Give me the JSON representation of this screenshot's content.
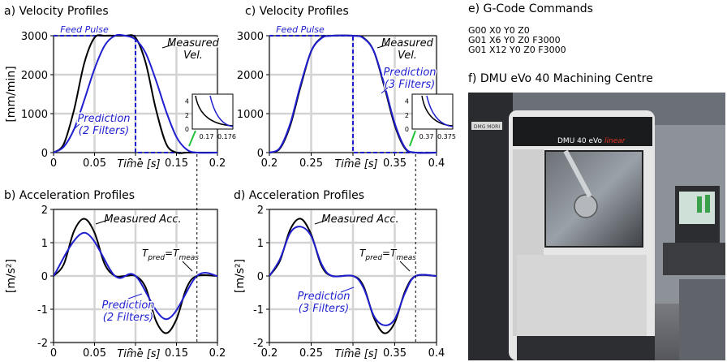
{
  "panel_e": {
    "title": "e) G-Code Commands",
    "lines": [
      "G00 X0 Y0 Z0",
      "G01 X6 Y0 Z0 F3000",
      "G01 X12 Y0 Z0 F3000"
    ]
  },
  "panel_f": {
    "title": "f) DMU eVo 40 Machining Centre",
    "machine_brand": "DMG MORI",
    "machine_model": "DMU 40 eVo",
    "machine_model_suffix": "linear"
  },
  "chart_data": [
    {
      "id": "a",
      "type": "line",
      "title": "a) Velocity Profiles",
      "xlabel": "Time [s]",
      "ylabel": "[mm/min]",
      "xlim": [
        0,
        0.2
      ],
      "ylim": [
        0,
        3000
      ],
      "xticks": [
        "0",
        "0.05",
        "0.1",
        "0.15",
        "0.2"
      ],
      "yticks": [
        "0",
        "1000",
        "2000",
        "3000"
      ],
      "grid": true,
      "series": [
        {
          "name": "Feed Pulse",
          "color": "#1f1fd0",
          "style": "dashed",
          "x": [
            0,
            0.1,
            0.1,
            0.2
          ],
          "y": [
            3000,
            3000,
            0,
            0
          ]
        },
        {
          "name": "Measured Vel.",
          "color": "#000000",
          "x": [
            0,
            0.0125,
            0.025,
            0.0375,
            0.05,
            0.0625,
            0.075,
            0.0875,
            0.1,
            0.1125,
            0.125,
            0.1375,
            0.15,
            0.1625,
            0.175,
            0.2
          ],
          "y": [
            0,
            220,
            1100,
            2300,
            2950,
            3000,
            3000,
            3000,
            2950,
            2300,
            1100,
            220,
            0,
            0,
            0,
            0
          ]
        },
        {
          "name": "Prediction (2 Filters)",
          "color": "#1f1fd0",
          "x": [
            0,
            0.0125,
            0.025,
            0.0375,
            0.05,
            0.0625,
            0.075,
            0.0875,
            0.1,
            0.1125,
            0.125,
            0.1375,
            0.15,
            0.1625,
            0.175,
            0.2
          ],
          "y": [
            0,
            150,
            600,
            1350,
            2150,
            2750,
            3000,
            3000,
            2900,
            2550,
            1850,
            1050,
            400,
            80,
            0,
            0
          ]
        }
      ],
      "annotations": [
        "Feed Pulse",
        "Measured Vel.",
        "Prediction (2 Filters)"
      ],
      "inset": {
        "xticks": [
          "0.17",
          "0.176"
        ],
        "yticks": [
          "0",
          "2",
          "4"
        ]
      }
    },
    {
      "id": "b",
      "type": "line",
      "title": "b) Acceleration Profiles",
      "xlabel": "Time [s]",
      "ylabel": "[m/s²]",
      "xlim": [
        0,
        0.2
      ],
      "ylim": [
        -2,
        2
      ],
      "xticks": [
        "0",
        "0.05",
        "0.1",
        "0.15",
        "0.2"
      ],
      "yticks": [
        "-2",
        "-1",
        "0",
        "1",
        "2"
      ],
      "grid": true,
      "series": [
        {
          "name": "Measured Acc.",
          "color": "#000000",
          "x": [
            0,
            0.0125,
            0.025,
            0.0375,
            0.05,
            0.0625,
            0.075,
            0.0875,
            0.1,
            0.1125,
            0.125,
            0.1375,
            0.15,
            0.1625,
            0.175,
            0.2
          ],
          "y": [
            0,
            0.35,
            1.35,
            1.72,
            1.3,
            0.35,
            0,
            0,
            0,
            -0.35,
            -1.35,
            -1.72,
            -1.3,
            -0.35,
            0,
            0
          ]
        },
        {
          "name": "Prediction (2 Filters)",
          "color": "#1f1fd0",
          "x": [
            0,
            0.0375,
            0.075,
            0.1,
            0.1375,
            0.175,
            0.2
          ],
          "y": [
            0,
            1.3,
            0,
            0,
            -1.3,
            0,
            0
          ]
        }
      ],
      "annotations": [
        "Measured Acc.",
        "Prediction (2 Filters)",
        "Tpred=Tmeas"
      ],
      "marker_x": 0.175
    },
    {
      "id": "c",
      "type": "line",
      "title": "c) Velocity Profiles",
      "xlabel": "Time [s]",
      "ylabel": "",
      "xlim": [
        0.2,
        0.4
      ],
      "ylim": [
        0,
        3000
      ],
      "xticks": [
        "0.2",
        "0.25",
        "0.3",
        "0.35",
        "0.4"
      ],
      "yticks": [
        "0",
        "1000",
        "2000",
        "3000"
      ],
      "grid": true,
      "series": [
        {
          "name": "Feed Pulse",
          "color": "#1f1fd0",
          "style": "dashed",
          "x": [
            0.2,
            0.3,
            0.3,
            0.4
          ],
          "y": [
            3000,
            3000,
            0,
            0
          ]
        },
        {
          "name": "Measured Vel.",
          "color": "#000000",
          "x": [
            0.2,
            0.2125,
            0.225,
            0.2375,
            0.25,
            0.2625,
            0.275,
            0.3,
            0.3125,
            0.325,
            0.3375,
            0.35,
            0.3625,
            0.375,
            0.4
          ],
          "y": [
            0,
            100,
            700,
            1700,
            2600,
            2950,
            3000,
            3000,
            2950,
            2600,
            1700,
            700,
            100,
            0,
            0
          ]
        },
        {
          "name": "Prediction (3 Filters)",
          "color": "#1f1fd0",
          "x": [
            0.2,
            0.2125,
            0.225,
            0.2375,
            0.25,
            0.2625,
            0.275,
            0.3,
            0.3125,
            0.325,
            0.3375,
            0.35,
            0.3625,
            0.375,
            0.4
          ],
          "y": [
            0,
            120,
            750,
            1750,
            2600,
            2940,
            3000,
            3000,
            2940,
            2600,
            1750,
            750,
            120,
            0,
            0
          ]
        }
      ],
      "annotations": [
        "Feed Pulse",
        "Measured Vel.",
        "Prediction (3 Filters)"
      ],
      "inset": {
        "xticks": [
          "0.37",
          "0.375"
        ],
        "yticks": [
          "0",
          "2",
          "4"
        ]
      }
    },
    {
      "id": "d",
      "type": "line",
      "title": "d) Acceleration Profiles",
      "xlabel": "Time [s]",
      "ylabel": "[m/s²]",
      "xlim": [
        0.2,
        0.4
      ],
      "ylim": [
        -2,
        2
      ],
      "xticks": [
        "0.2",
        "0.25",
        "0.3",
        "0.35",
        "0.4"
      ],
      "yticks": [
        "-2",
        "-1",
        "0",
        "1",
        "2"
      ],
      "grid": true,
      "series": [
        {
          "name": "Measured Acc.",
          "color": "#000000",
          "x": [
            0.2,
            0.2125,
            0.225,
            0.2375,
            0.25,
            0.2625,
            0.275,
            0.3,
            0.3125,
            0.325,
            0.3375,
            0.35,
            0.3625,
            0.375,
            0.4
          ],
          "y": [
            0,
            0.45,
            1.4,
            1.72,
            1.25,
            0.3,
            0,
            0,
            -0.3,
            -1.25,
            -1.72,
            -1.4,
            -0.45,
            0,
            0
          ]
        },
        {
          "name": "Prediction (3 Filters)",
          "color": "#1f1fd0",
          "x": [
            0.2,
            0.2125,
            0.225,
            0.2375,
            0.25,
            0.2625,
            0.275,
            0.3,
            0.3125,
            0.325,
            0.3375,
            0.35,
            0.3625,
            0.375,
            0.4
          ],
          "y": [
            0,
            0.5,
            1.3,
            1.48,
            1.2,
            0.35,
            0,
            0,
            -0.35,
            -1.2,
            -1.48,
            -1.3,
            -0.5,
            0,
            0
          ]
        }
      ],
      "annotations": [
        "Measured Acc.",
        "Prediction (3 Filters)",
        "Tpred=Tmeas"
      ],
      "marker_x": 0.375
    }
  ]
}
